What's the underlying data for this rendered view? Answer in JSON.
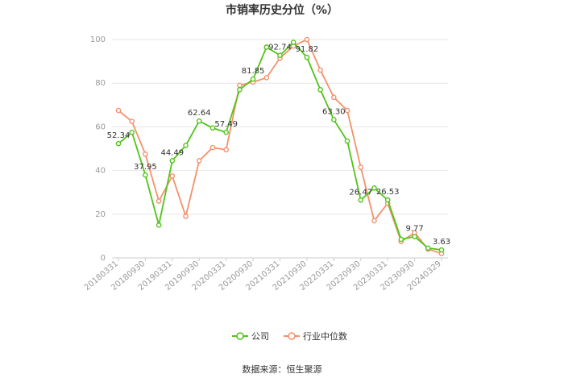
{
  "chart_data": {
    "type": "line",
    "title": "市销率历史分位（%）",
    "ylim": [
      0,
      100
    ],
    "y_ticks": [
      "0",
      "20",
      "40",
      "60",
      "80",
      "100"
    ],
    "x_tick_labels": [
      "20180331",
      "20180930",
      "20190331",
      "20190930",
      "20200331",
      "20200930",
      "20210331",
      "20210930",
      "20220331",
      "20220930",
      "20230331",
      "20230930",
      "20240329"
    ],
    "x": [
      "20180331",
      "20180630",
      "20180930",
      "20181231",
      "20190331",
      "20190630",
      "20190930",
      "20191231",
      "20200331",
      "20200630",
      "20200930",
      "20201231",
      "20210331",
      "20210630",
      "20210930",
      "20211231",
      "20220331",
      "20220630",
      "20220930",
      "20221231",
      "20230331",
      "20230630",
      "20230930",
      "20231231",
      "20240329"
    ],
    "series": [
      {
        "name": "公司",
        "color": "#52c41a",
        "values": [
          52.34,
          57.5,
          37.95,
          15.0,
          44.49,
          51.5,
          62.64,
          59.5,
          57.49,
          77.0,
          81.85,
          96.5,
          92.74,
          98.7,
          91.82,
          77.0,
          63.3,
          53.5,
          26.47,
          32.0,
          26.53,
          8.5,
          9.77,
          4.5,
          3.63
        ]
      },
      {
        "name": "行业中位数",
        "color": "#f4916b",
        "values": [
          67.5,
          62.5,
          47.5,
          26.0,
          37.5,
          19.0,
          44.5,
          50.5,
          49.5,
          79.0,
          80.5,
          82.5,
          91.5,
          97.0,
          100.0,
          86.0,
          73.5,
          67.5,
          41.5,
          17.0,
          25.0,
          7.5,
          11.5,
          4.0,
          2.0
        ]
      }
    ],
    "data_labels": [
      {
        "index": 0,
        "text": "52.34"
      },
      {
        "index": 2,
        "text": "37.95"
      },
      {
        "index": 4,
        "text": "44.49"
      },
      {
        "index": 6,
        "text": "62.64"
      },
      {
        "index": 8,
        "text": "57.49"
      },
      {
        "index": 10,
        "text": "81.85"
      },
      {
        "index": 12,
        "text": "92.74"
      },
      {
        "index": 14,
        "text": "91.82"
      },
      {
        "index": 16,
        "text": "63.30"
      },
      {
        "index": 18,
        "text": "26.47"
      },
      {
        "index": 20,
        "text": "26.53"
      },
      {
        "index": 22,
        "text": "9.77"
      },
      {
        "index": 24,
        "text": "3.63"
      }
    ],
    "grid": true,
    "legend_position": "bottom"
  },
  "footer": {
    "source": "数据来源：恒生聚源"
  }
}
